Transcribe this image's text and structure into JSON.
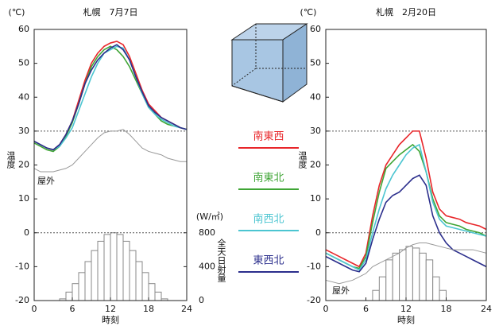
{
  "chart_data": [
    {
      "type": "line",
      "title": "札幌　7月7日",
      "y_unit": "(℃)",
      "ylabel": "温度",
      "xlabel": "時刻",
      "y2_unit": "(W/㎡)",
      "y2label": "全天日射量",
      "x": [
        0,
        1,
        2,
        3,
        4,
        5,
        6,
        7,
        8,
        9,
        10,
        11,
        12,
        13,
        14,
        15,
        16,
        17,
        18,
        19,
        20,
        21,
        22,
        23,
        24
      ],
      "xlim": [
        0,
        24
      ],
      "xticks": [
        0,
        6,
        12,
        18,
        24
      ],
      "ylim": [
        -20,
        60
      ],
      "yticks": [
        -20,
        -10,
        0,
        10,
        20,
        30,
        40,
        50,
        60
      ],
      "y2lim": [
        0,
        3200
      ],
      "y2ticks": [
        0,
        400,
        800
      ],
      "hlines": [
        30,
        0
      ],
      "series": [
        {
          "name": "南東西",
          "color": "#e8262a",
          "values": [
            27,
            26,
            25,
            24.5,
            26,
            29,
            33,
            39,
            45,
            50,
            53,
            55,
            56,
            56.5,
            55.5,
            52,
            47,
            42,
            38,
            36,
            34,
            33,
            32,
            31,
            30.5
          ]
        },
        {
          "name": "南東北",
          "color": "#3fa535",
          "values": [
            26.5,
            25.5,
            24.5,
            24,
            25.5,
            28.5,
            32.5,
            38,
            44,
            49,
            52,
            54,
            55,
            54,
            52,
            49,
            45,
            41,
            37,
            35,
            33,
            32,
            31.5,
            31,
            30.5
          ]
        },
        {
          "name": "南西北",
          "color": "#4cc5d1",
          "values": [
            27,
            26,
            25,
            24.5,
            25.5,
            28,
            31,
            36,
            41,
            46,
            50,
            53,
            54,
            55,
            54.5,
            51,
            46,
            41,
            37,
            35,
            33.5,
            32.5,
            31.5,
            31,
            30.5
          ]
        },
        {
          "name": "東西北",
          "color": "#2b2e8c",
          "values": [
            27,
            26,
            25,
            24.5,
            26,
            29,
            33,
            38,
            44,
            48,
            51,
            53,
            54.5,
            55.5,
            54,
            51,
            46,
            41.5,
            37.5,
            35.5,
            34,
            33,
            32,
            31,
            30.5
          ]
        },
        {
          "name": "屋外",
          "color": "#999999",
          "values": [
            19,
            18,
            18,
            18,
            18.5,
            19,
            20,
            22,
            24,
            26,
            28,
            29.5,
            30,
            30,
            30.5,
            29,
            27,
            25,
            24,
            23.5,
            23,
            22,
            21.5,
            21,
            21
          ]
        }
      ],
      "radiation": {
        "color": "#ffffff",
        "edge": "#888888",
        "bins": [
          4,
          5,
          6,
          7,
          8,
          9,
          10,
          11,
          12,
          13,
          14,
          15,
          16,
          17,
          18,
          19,
          20,
          21
        ],
        "values": [
          20,
          100,
          200,
          330,
          460,
          590,
          700,
          780,
          800,
          780,
          700,
          590,
          460,
          330,
          200,
          100,
          20
        ]
      }
    },
    {
      "type": "line",
      "title": "札幌　2月20日",
      "y_unit": "(℃)",
      "ylabel": "温度",
      "xlabel": "時刻",
      "x": [
        0,
        1,
        2,
        3,
        4,
        5,
        6,
        7,
        8,
        9,
        10,
        11,
        12,
        13,
        14,
        15,
        16,
        17,
        18,
        19,
        20,
        21,
        22,
        23,
        24
      ],
      "xlim": [
        0,
        24
      ],
      "xticks": [
        0,
        6,
        12,
        18,
        24
      ],
      "ylim": [
        -20,
        60
      ],
      "yticks": [
        -20,
        -10,
        0,
        10,
        20,
        30,
        40,
        50,
        60
      ],
      "y2lim": [
        0,
        3200
      ],
      "hlines": [
        30,
        0
      ],
      "series": [
        {
          "color": "#e8262a",
          "values": [
            -5,
            -6,
            -7,
            -8,
            -9,
            -10,
            -6,
            5,
            14,
            20,
            23,
            26,
            28,
            30,
            30,
            22,
            12,
            7,
            5,
            4.5,
            4,
            3,
            2.5,
            2,
            1
          ]
        },
        {
          "color": "#3fa535",
          "values": [
            -6,
            -7,
            -8,
            -9,
            -10,
            -10.5,
            -7,
            3,
            12,
            19,
            21,
            23,
            24.5,
            26,
            24,
            18,
            10,
            5,
            3,
            2.5,
            2,
            1,
            0.5,
            0,
            -1
          ]
        },
        {
          "color": "#4cc5d1",
          "values": [
            -6,
            -7,
            -8,
            -9,
            -10,
            -11,
            -8,
            0,
            7,
            13,
            17,
            20,
            23,
            25,
            26,
            18,
            9,
            4,
            2,
            1.5,
            1,
            0.5,
            0,
            -0.5,
            -1
          ]
        },
        {
          "color": "#2b2e8c",
          "values": [
            -7,
            -8,
            -9,
            -10,
            -11,
            -11.5,
            -9,
            -2,
            4,
            9,
            11,
            12,
            14,
            16,
            17,
            14,
            5,
            0,
            -3,
            -5,
            -6,
            -7,
            -8,
            -9,
            -10
          ]
        },
        {
          "name": "屋外",
          "color": "#999999",
          "values": [
            -14,
            -14.5,
            -15,
            -14.5,
            -14,
            -13,
            -12,
            -10,
            -9,
            -8,
            -7,
            -6,
            -4.5,
            -3.5,
            -3,
            -3,
            -3.5,
            -4,
            -4.5,
            -5,
            -5,
            -5,
            -5,
            -5.5,
            -6
          ]
        }
      ],
      "radiation": {
        "color": "#ffffff",
        "edge": "#888888",
        "bins": [
          7,
          8,
          9,
          10,
          11,
          12,
          13,
          14,
          15,
          16,
          17,
          18
        ],
        "values": [
          120,
          280,
          480,
          560,
          600,
          640,
          620,
          560,
          480,
          280,
          120
        ]
      }
    }
  ]
}
